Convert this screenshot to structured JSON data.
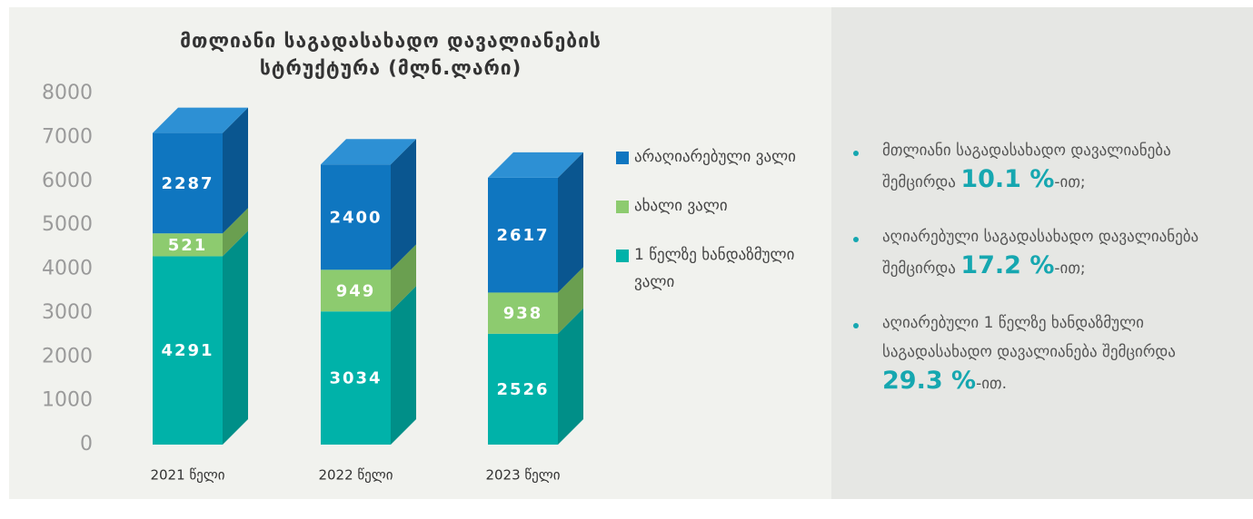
{
  "chart_data": {
    "type": "stacked-bar-3d",
    "title": "მთლიანი საგადასახადო დავალიანების სტრუქტურა (მლნ.ლარი)",
    "categories": [
      "2021 წელი",
      "2022 წელი",
      "2023 წელი"
    ],
    "series": [
      {
        "name": "1 წელზე ხანდაზმული ვალი",
        "color": "#00b2a9",
        "side": "#008f88",
        "values": [
          4291,
          3034,
          2526
        ]
      },
      {
        "name": "ახალი ვალი",
        "color": "#8dcb6f",
        "side": "#6a9f50",
        "values": [
          521,
          949,
          938
        ]
      },
      {
        "name": "არაღიარებული ვალი",
        "color": "#0f76c0",
        "side": "#0a5690",
        "top": "#2d90d4",
        "values": [
          2287,
          2400,
          2617
        ]
      }
    ],
    "ylim": [
      0,
      8000
    ],
    "yticks": [
      0,
      1000,
      2000,
      3000,
      4000,
      5000,
      6000,
      7000,
      8000
    ]
  },
  "notes": [
    {
      "text": "მთლიანი საგადასახადო დავალიანება შემცირდა",
      "highlight": "10.1 %",
      "suffix": "-ით;"
    },
    {
      "text": "აღიარებული საგადასახადო დავალიანება შემცირდა",
      "highlight": "17.2 %",
      "suffix": "-ით;"
    },
    {
      "text": "აღიარებული 1 წელზე ხანდაზმული საგადასახადო დავალიანება შემცირდა",
      "highlight": "29.3 %",
      "suffix": "-ით."
    }
  ]
}
